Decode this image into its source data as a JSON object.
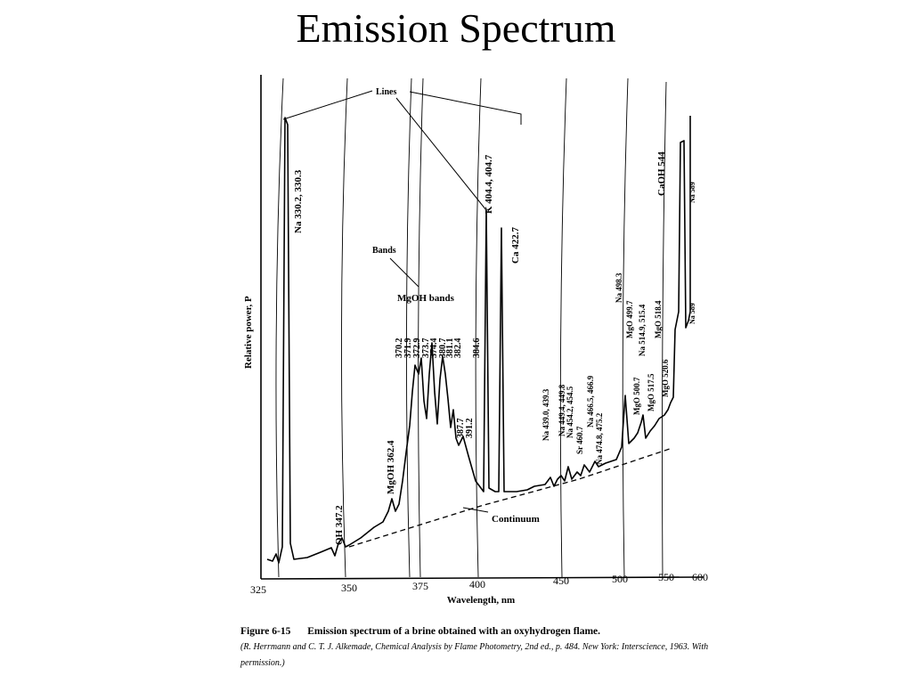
{
  "slide": {
    "title": "Emission Spectrum"
  },
  "chart_data": {
    "type": "line",
    "title": "",
    "xlabel": "Wavelength, nm",
    "ylabel": "Relative power, P",
    "x_ticks": [
      "325",
      "350",
      "375",
      "400",
      "450",
      "500",
      "550",
      "600"
    ],
    "callouts": {
      "lines": "Lines",
      "bands": "Bands",
      "mgoh_bands": "MgOH bands",
      "continuum": "Continuum"
    },
    "line_labels": [
      "Na 330.2, 330.3",
      "OH 347.2",
      "MgOH 362.4",
      "370.2",
      "371.9",
      "372.9",
      "373.7",
      "374.4",
      "380.7",
      "381.1",
      "382.4",
      "384.6",
      "387.7",
      "391.2",
      "K 404.4, 404.7",
      "Ca 422.7",
      "Na 439.0, 439.3",
      "Na 449.4, 449.8",
      "Na 454.2, 454.5",
      "Sr 460.7",
      "Na 466.5, 466.9",
      "Na 474.8, 475.2",
      "Na 498.3",
      "MgO 499.7",
      "MgO 500.7",
      "Na 514.9, 515.4",
      "MgO 517.5",
      "MgO 518.4",
      "MgO 520.6",
      "CaOH 544",
      "Na 589",
      "Na 589"
    ]
  },
  "caption": {
    "figure_id": "Figure 6-15",
    "text": "Emission spectrum of a brine obtained with an oxyhydrogen flame.",
    "credit": "(R. Herrmann and C. T. J. Alkemade, Chemical Analysis by Flame Photometry, 2nd ed., p. 484. New York: Interscience, 1963. With permission.)"
  }
}
